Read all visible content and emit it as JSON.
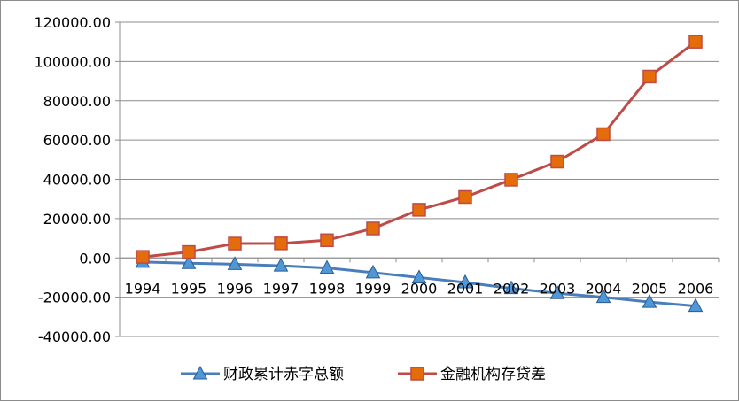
{
  "chart_data": {
    "type": "line",
    "title": "",
    "xlabel": "",
    "ylabel": "",
    "categories": [
      "1994",
      "1995",
      "1996",
      "1997",
      "1998",
      "1999",
      "2000",
      "2001",
      "2002",
      "2003",
      "2004",
      "2005",
      "2006"
    ],
    "ylim": [
      -40000,
      120000
    ],
    "yticks": [
      -40000,
      -20000,
      0,
      20000,
      40000,
      60000,
      80000,
      100000,
      120000
    ],
    "ytick_labels": [
      "-40000.00",
      "-20000.00",
      "0.00",
      "20000.00",
      "40000.00",
      "60000.00",
      "80000.00",
      "100000.00",
      "120000.00"
    ],
    "grid": true,
    "legend_position": "bottom",
    "series": [
      {
        "name": "财政累计赤字总额",
        "color": "#4a7ebb",
        "marker": "triangle",
        "values": [
          -2100,
          -2700,
          -3200,
          -4000,
          -5100,
          -7500,
          -10000,
          -12500,
          -15500,
          -18000,
          -20000,
          -22500,
          -24500
        ]
      },
      {
        "name": "金融机构存贷差",
        "color": "#be4b48",
        "marker": "square",
        "values": [
          500,
          3000,
          7300,
          7400,
          9000,
          15000,
          24500,
          31000,
          39800,
          49000,
          63000,
          92300,
          110000
        ]
      }
    ]
  }
}
